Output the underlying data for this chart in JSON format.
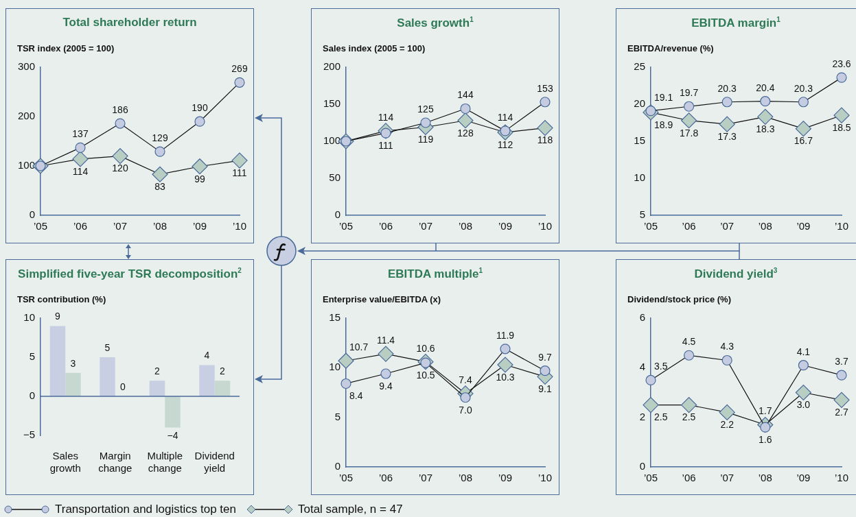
{
  "chart_data": [
    {
      "type": "line",
      "title": "Total shareholder return",
      "ylabel": "TSR index (2005 = 100)",
      "categories": [
        "’05",
        "’06",
        "’07",
        "’08",
        "’09",
        "’10"
      ],
      "ylim": [
        0,
        300
      ],
      "yticks": [
        0,
        100,
        200,
        300
      ],
      "legend": "bottom",
      "series": [
        {
          "name": "Transportation and logistics top ten",
          "color": "#c5cbe0",
          "marker": "circle",
          "values": [
            100,
            137,
            186,
            129,
            190,
            269
          ],
          "value_labels": [
            null,
            "137",
            "186",
            "129",
            "190",
            "269"
          ]
        },
        {
          "name": "Total sample, n = 47",
          "color": "#b8cec3",
          "marker": "diamond",
          "values": [
            100,
            114,
            120,
            83,
            99,
            111
          ],
          "value_labels": [
            null,
            "114",
            "120",
            "83",
            "99",
            "111"
          ]
        }
      ]
    },
    {
      "type": "line",
      "title": "Sales growth$^{1}$",
      "ylabel": "Sales index (2005 = 100)",
      "categories": [
        "’05",
        "’06",
        "’07",
        "’08",
        "’09",
        "’10"
      ],
      "ylim": [
        0,
        200
      ],
      "yticks": [
        0,
        50,
        100,
        150,
        200
      ],
      "series": [
        {
          "color": "#c5cbe0",
          "marker": "circle",
          "values": [
            100,
            111,
            125,
            144,
            114,
            153
          ],
          "value_labels": [
            null,
            "111",
            "125",
            "144",
            "114",
            "153"
          ]
        },
        {
          "color": "#b8cec3",
          "marker": "diamond",
          "values": [
            100,
            114,
            119,
            128,
            112,
            118
          ],
          "value_labels": [
            null,
            "114",
            "119",
            "128",
            "112",
            "118"
          ]
        }
      ]
    },
    {
      "type": "line",
      "title": "EBITDA margin$^{1}$",
      "ylabel": "EBITDA/revenue (%)",
      "categories": [
        "’05",
        "’06",
        "’07",
        "’08",
        "’09",
        "’10"
      ],
      "ylim": [
        5,
        25
      ],
      "yticks": [
        5,
        10,
        15,
        20,
        25
      ],
      "series": [
        {
          "color": "#c5cbe0",
          "marker": "circle",
          "values": [
            19.1,
            19.7,
            20.3,
            20.4,
            20.3,
            23.6
          ],
          "value_labels": [
            "19.1",
            "19.7",
            "20.3",
            "20.4",
            "20.3",
            "23.6"
          ]
        },
        {
          "color": "#b8cec3",
          "marker": "diamond",
          "values": [
            18.9,
            17.8,
            17.3,
            18.3,
            16.7,
            18.5
          ],
          "value_labels": [
            "18.9",
            "17.8",
            "17.3",
            "18.3",
            "16.7",
            "18.5"
          ]
        }
      ]
    },
    {
      "type": "bar",
      "title": "Simplified five-year TSR decomposition$^{2}$",
      "ylabel": "TSR contribution (%)",
      "categories": [
        "Sales growth",
        "Margin change",
        "Multiple change",
        "Dividend yield"
      ],
      "ylim": [
        -5,
        10
      ],
      "yticks": [
        -5,
        0,
        5,
        10
      ],
      "ref_lines": [
        {
          "axis": "y",
          "value": 0,
          "color": "#4a6a9a"
        }
      ],
      "series": [
        {
          "color": "#c9cfe2",
          "values": [
            9,
            5,
            2,
            4
          ],
          "value_labels": [
            "9",
            "5",
            "2",
            "4"
          ]
        },
        {
          "color": "#c6d8cf",
          "values": [
            3,
            0,
            -4,
            2
          ],
          "value_labels": [
            "3",
            "0",
            "−4",
            "2"
          ]
        }
      ]
    },
    {
      "type": "line",
      "title": "EBITDA multiple$^{1}$",
      "ylabel": "Enterprise value/EBITDA (x)",
      "categories": [
        "’05",
        "’06",
        "’07",
        "’08",
        "’09",
        "’10"
      ],
      "ylim": [
        0,
        15
      ],
      "yticks": [
        0,
        5,
        10,
        15
      ],
      "series": [
        {
          "color": "#c5cbe0",
          "marker": "circle",
          "values": [
            8.4,
            9.4,
            10.5,
            7.0,
            11.9,
            9.7
          ],
          "value_labels": [
            "8.4",
            "9.4",
            "10.5",
            "7.0",
            "11.9",
            "9.7"
          ]
        },
        {
          "color": "#b8cec3",
          "marker": "diamond",
          "values": [
            10.7,
            11.4,
            10.6,
            7.4,
            10.3,
            9.1
          ],
          "value_labels": [
            "10.7",
            "11.4",
            "10.6",
            "7.4",
            "10.3",
            "9.1"
          ]
        }
      ]
    },
    {
      "type": "line",
      "title": "Dividend yield$^{3}$",
      "ylabel": "Dividend/stock price (%)",
      "categories": [
        "’05",
        "’06",
        "’07",
        "’08",
        "’09",
        "’10"
      ],
      "ylim": [
        0,
        6
      ],
      "yticks": [
        0,
        2,
        4,
        6
      ],
      "series": [
        {
          "color": "#c5cbe0",
          "marker": "circle",
          "values": [
            3.5,
            4.5,
            4.3,
            1.6,
            4.1,
            3.7
          ],
          "value_labels": [
            "3.5",
            "4.5",
            "4.3",
            "1.6",
            "4.1",
            "3.7"
          ]
        },
        {
          "color": "#b8cec3",
          "marker": "diamond",
          "values": [
            2.5,
            2.5,
            2.2,
            1.7,
            3.0,
            2.7
          ],
          "value_labels": [
            "2.5",
            "2.5",
            "2.2",
            "1.7",
            "3.0",
            "2.7"
          ]
        }
      ]
    }
  ]
}
